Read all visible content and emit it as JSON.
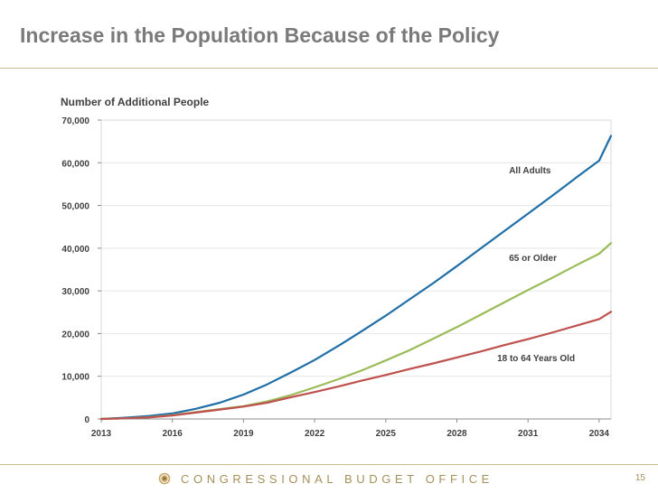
{
  "page": {
    "title": "Increase in the Population Because of the Policy",
    "footer": "CONGRESSIONAL BUDGET OFFICE",
    "page_number": "15",
    "logo_icon": "cbo-seal-icon"
  },
  "colors": {
    "title": "#7a7a7a",
    "rule": "#c9bc97",
    "footer": "#a6905a",
    "all_adults": "#1f6ea8",
    "older": "#9bbb59",
    "working_age": "#be504d"
  },
  "chart_data": {
    "type": "line",
    "title": "",
    "ylabel": "Number of Additional People",
    "xlabel": "",
    "xlim": [
      2013,
      2034.5
    ],
    "ylim": [
      0,
      70000
    ],
    "x_ticks": [
      2013,
      2016,
      2019,
      2022,
      2025,
      2028,
      2031,
      2034
    ],
    "x_tick_labels": [
      "2013",
      "2016",
      "2019",
      "2022",
      "2025",
      "2028",
      "2031",
      "2034"
    ],
    "y_ticks": [
      0,
      10000,
      20000,
      30000,
      40000,
      50000,
      60000,
      70000
    ],
    "y_tick_labels": [
      "0",
      "10,000",
      "20,000",
      "30,000",
      "40,000",
      "50,000",
      "60,000",
      "70,000"
    ],
    "x": [
      2013,
      2014,
      2015,
      2016,
      2017,
      2018,
      2019,
      2020,
      2021,
      2022,
      2023,
      2024,
      2025,
      2026,
      2027,
      2028,
      2029,
      2030,
      2031,
      2032,
      2033,
      2034,
      2034.5
    ],
    "series": [
      {
        "name": "All Adults",
        "color": "#1f6ea8",
        "label": "All Adults",
        "label_x": 2030.2,
        "label_y": 57500,
        "values": [
          0,
          300,
          700,
          1300,
          2400,
          3800,
          5700,
          8100,
          10900,
          13800,
          17100,
          20600,
          24200,
          28000,
          31800,
          35800,
          39900,
          44000,
          48100,
          52200,
          56400,
          60500,
          66300
        ]
      },
      {
        "name": "65 or Older",
        "color": "#9bbb59",
        "label": "65 or Older",
        "label_x": 2030.2,
        "label_y": 37000,
        "values": [
          0,
          150,
          400,
          900,
          1600,
          2300,
          3000,
          4100,
          5600,
          7400,
          9300,
          11400,
          13700,
          16100,
          18800,
          21500,
          24400,
          27300,
          30200,
          33000,
          35900,
          38700,
          41200
        ]
      },
      {
        "name": "18 to 64 Years Old",
        "color": "#be504d",
        "label": "18 to 64 Years Old",
        "label_x": 2029.7,
        "label_y": 13500,
        "values": [
          0,
          150,
          350,
          800,
          1500,
          2200,
          2900,
          3800,
          5100,
          6300,
          7600,
          9000,
          10300,
          11700,
          13000,
          14400,
          15800,
          17300,
          18700,
          20200,
          21800,
          23400,
          25100
        ]
      }
    ]
  }
}
